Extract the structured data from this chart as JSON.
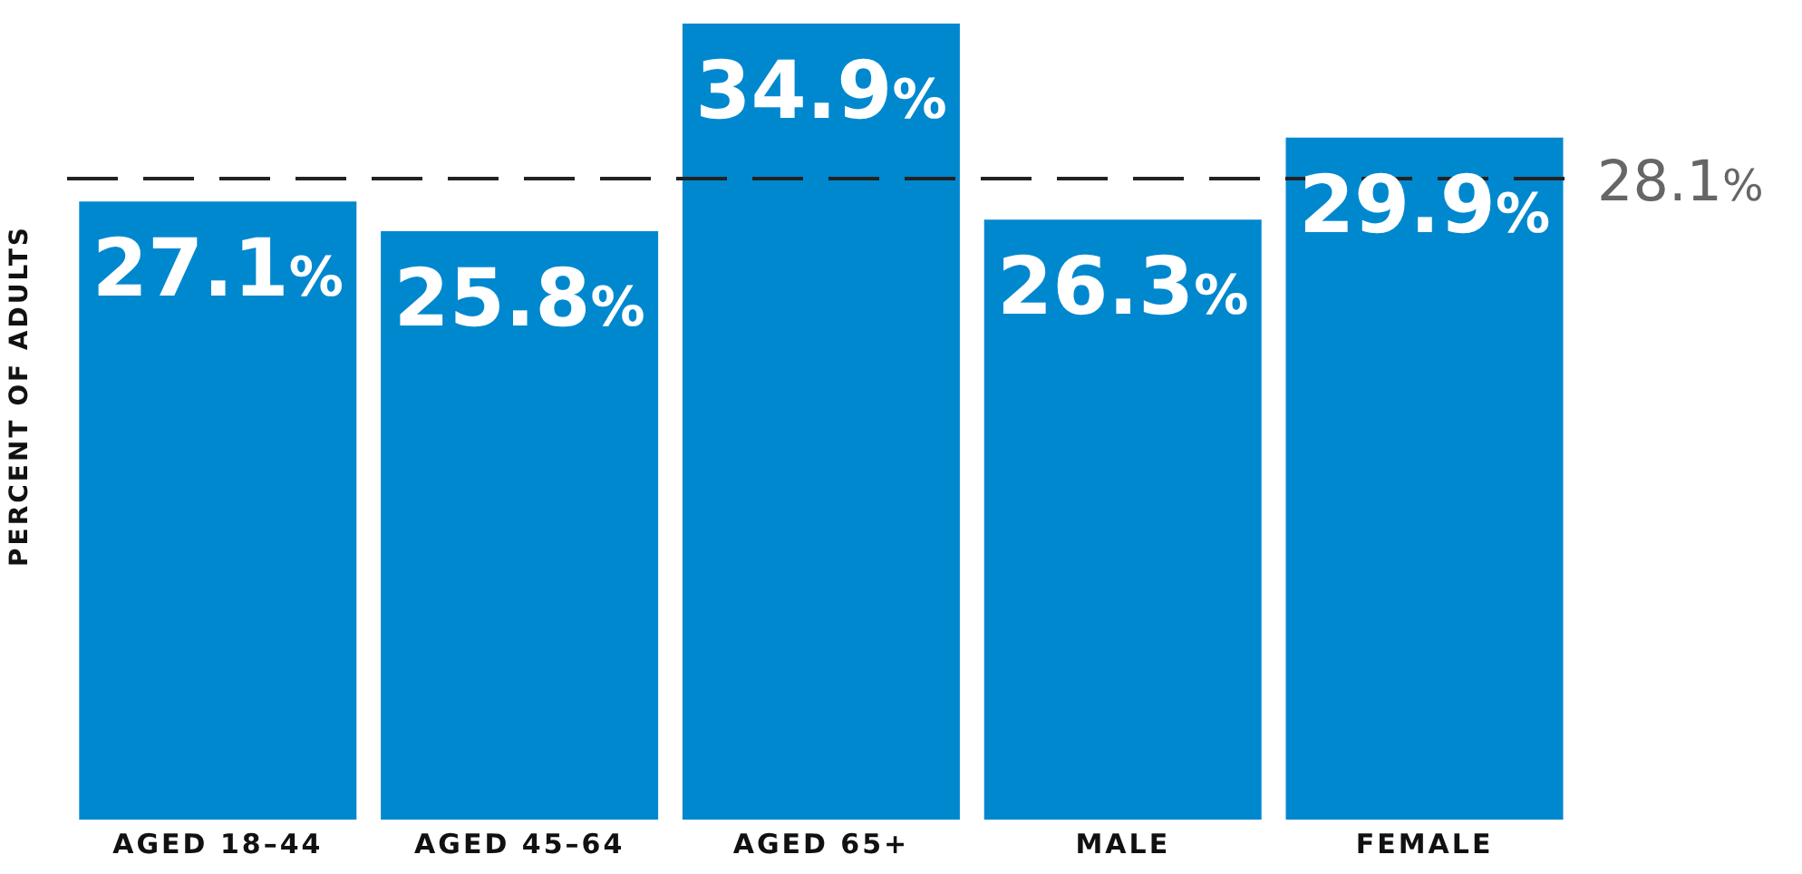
{
  "chart_data": {
    "type": "bar",
    "ylabel": "PERCENT OF ADULTS",
    "categories": [
      "AGED 18–44",
      "AGED 45–64",
      "AGED 65+",
      "MALE",
      "FEMALE"
    ],
    "values": [
      27.1,
      25.8,
      34.9,
      26.3,
      29.9
    ],
    "value_labels": [
      "27.1%",
      "25.8%",
      "34.9%",
      "26.3%",
      "29.9%"
    ],
    "color": "#0088cf",
    "ref_lines": [
      {
        "axis": "y",
        "value": 28.1,
        "label": "28.1%",
        "color": "#222222",
        "line_style": "dashed"
      }
    ],
    "grid": false,
    "legend": false
  }
}
